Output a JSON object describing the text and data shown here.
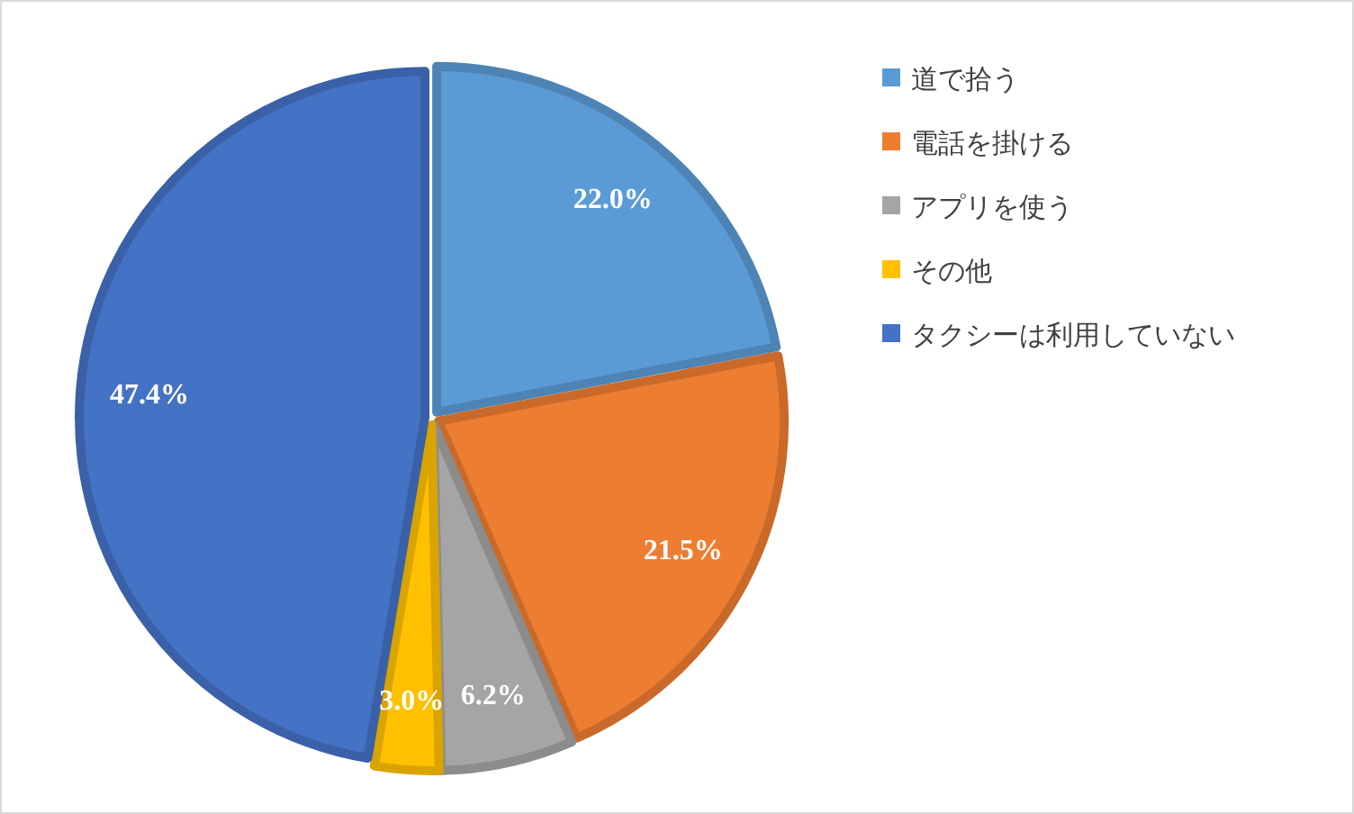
{
  "chart_data": {
    "type": "pie",
    "categories": [
      "道で拾う",
      "電話を掛ける",
      "アプリを使う",
      "その他",
      "タクシーは利用していない"
    ],
    "values": [
      22.0,
      21.5,
      6.2,
      3.0,
      47.4
    ],
    "colors": [
      "#5b9bd5",
      "#ed7d31",
      "#a5a5a5",
      "#ffc000",
      "#4472c4"
    ],
    "value_labels": [
      "22.0%",
      "21.5%",
      "6.2%",
      "3.0%",
      "47.4%"
    ],
    "legend": "right"
  }
}
